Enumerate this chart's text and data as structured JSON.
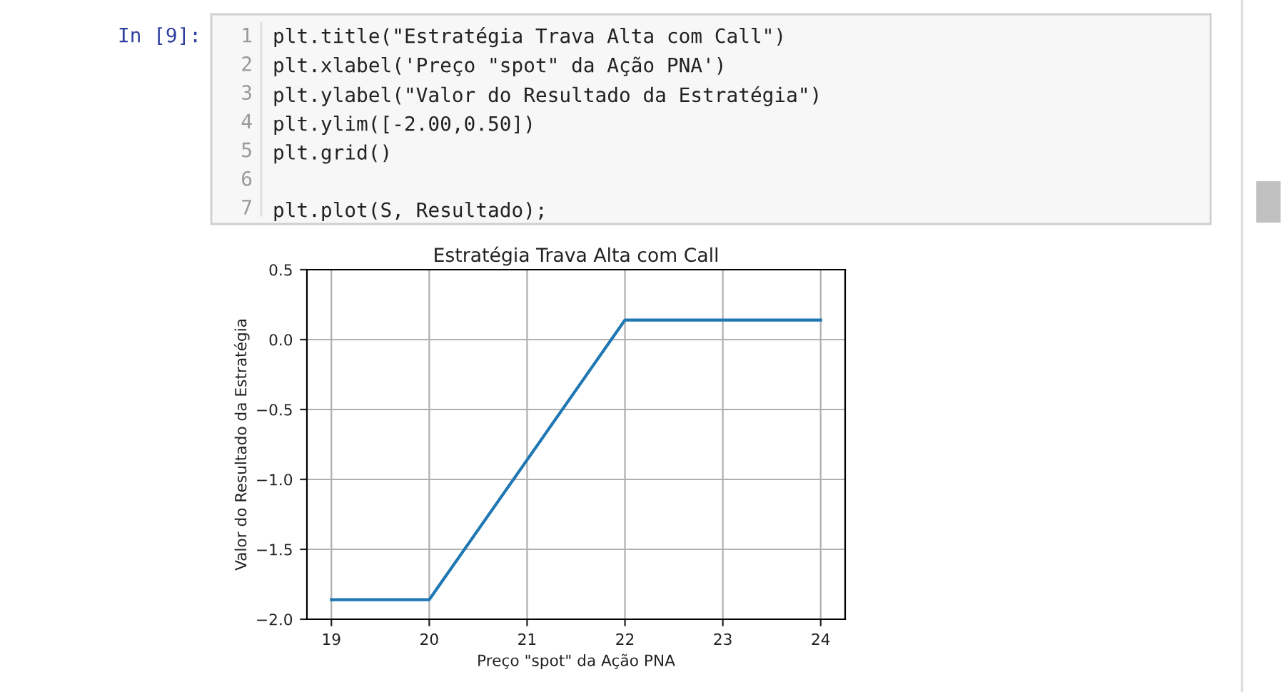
{
  "chart_data": {
    "type": "line",
    "title": "Estratégia Trava Alta com Call",
    "xlabel": "Preço \"spot\" da Ação PNA",
    "ylabel": "Valor do Resultado da Estratégia",
    "annotations": [
      "In [9]:",
      "1\n2\n3\n4\n5\n6\n7",
      "plt.title(\"Estratégia Trava Alta com Call\")\nplt.xlabel('Preço \"spot\" da Ação PNA')\nplt.ylabel(\"Valor do Resultado da Estratégia\")\nplt.ylim([-2.00,0.50])\nplt.grid()\n\nplt.plot(S, Resultado);"
    ],
    "x": [
      19,
      20,
      22,
      24
    ],
    "series": [
      {
        "color": "#1f77b4",
        "values": [
          -1.86,
          -1.86,
          0.14,
          0.14
        ]
      }
    ],
    "xlim": [
      18.75,
      24.25
    ],
    "ylim": [
      -2.0,
      0.5
    ],
    "xticks": [
      19,
      20,
      21,
      22,
      23,
      24
    ],
    "yticks": [
      {
        "value": -2.0,
        "label": "−2.0"
      },
      {
        "value": -1.5,
        "label": "−1.5"
      },
      {
        "value": -1.0,
        "label": "−1.0"
      },
      {
        "value": -0.5,
        "label": "−0.5"
      },
      {
        "value": 0.0,
        "label": "0.0"
      },
      {
        "value": 0.5,
        "label": "0.5"
      }
    ],
    "grid": true
  }
}
